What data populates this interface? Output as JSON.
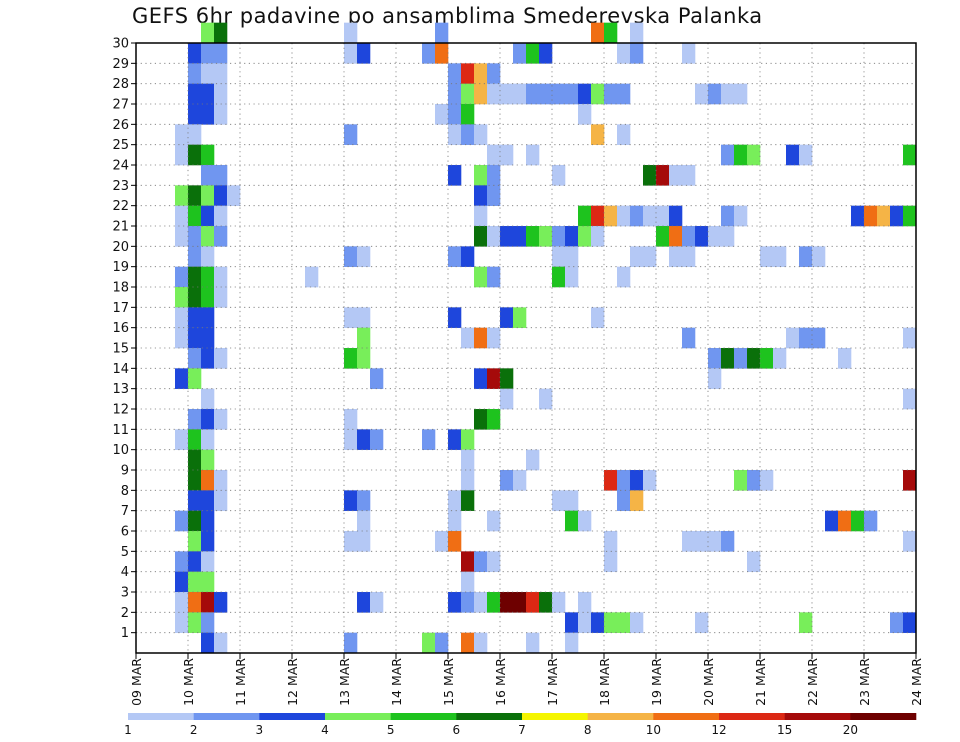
{
  "title": "GEFS 6hr padavine po ansamblima Smederevska Palanka",
  "chart_data": {
    "type": "heatmap",
    "title": "GEFS 6hr padavine po ansamblima Smederevska Palanka",
    "x_tick_labels": [
      "09 MAR",
      "10 MAR",
      "11 MAR",
      "12 MAR",
      "13 MAR",
      "14 MAR",
      "15 MAR",
      "16 MAR",
      "17 MAR",
      "18 MAR",
      "19 MAR",
      "20 MAR",
      "21 MAR",
      "22 MAR",
      "23 MAR",
      "24 MAR"
    ],
    "y_tick_labels": [
      "1",
      "2",
      "3",
      "4",
      "5",
      "6",
      "7",
      "8",
      "9",
      "10",
      "11",
      "12",
      "13",
      "14",
      "15",
      "16",
      "17",
      "18",
      "19",
      "20",
      "21",
      "22",
      "23",
      "24",
      "25",
      "26",
      "27",
      "28",
      "29",
      "30"
    ],
    "x_range_days": [
      9,
      24
    ],
    "y_range": [
      0,
      30
    ],
    "grid": "dotted",
    "time_step_hours": 6,
    "legend": {
      "placement": "bottom",
      "levels": [
        "1",
        "2",
        "3",
        "4",
        "5",
        "6",
        "7",
        "8",
        "10",
        "12",
        "15",
        "20"
      ],
      "colors": [
        "#b4c8f5",
        "#7096f0",
        "#1e46dc",
        "#78ee5a",
        "#1ec31e",
        "#0a700a",
        "#f5f500",
        "#f5b446",
        "#f06e14",
        "#dc2814",
        "#a50a0a",
        "#6e0000"
      ]
    },
    "cells_note": "each cell: [member, start_day, precipitation_mm]",
    "cells": [
      [
        30,
        10.25,
        4.5
      ],
      [
        30,
        10.5,
        6.5
      ],
      [
        30,
        13.0,
        1.5
      ],
      [
        30,
        14.75,
        2.5
      ],
      [
        30,
        17.75,
        10.5
      ],
      [
        30,
        18.0,
        5.5
      ],
      [
        30,
        18.5,
        1.5
      ],
      [
        29,
        10.0,
        3.5
      ],
      [
        29,
        10.25,
        2.5
      ],
      [
        29,
        10.5,
        2.5
      ],
      [
        29,
        13.0,
        1.5
      ],
      [
        29,
        13.25,
        3.5
      ],
      [
        29,
        14.5,
        2.5
      ],
      [
        29,
        14.75,
        10.5
      ],
      [
        29,
        16.25,
        2.5
      ],
      [
        29,
        16.5,
        5.5
      ],
      [
        29,
        16.75,
        3.5
      ],
      [
        29,
        18.25,
        1.5
      ],
      [
        29,
        18.5,
        2.5
      ],
      [
        29,
        19.5,
        1.5
      ],
      [
        28,
        10.0,
        2.5
      ],
      [
        28,
        10.25,
        1.5
      ],
      [
        28,
        10.5,
        1.5
      ],
      [
        28,
        15.0,
        2.5
      ],
      [
        28,
        15.25,
        12.5
      ],
      [
        28,
        15.5,
        8.5
      ],
      [
        28,
        15.75,
        2.5
      ],
      [
        27,
        10.0,
        3.5
      ],
      [
        27,
        10.25,
        3.5
      ],
      [
        27,
        10.5,
        1.5
      ],
      [
        27,
        15.0,
        2.5
      ],
      [
        27,
        15.25,
        4.5
      ],
      [
        27,
        15.5,
        8.5
      ],
      [
        27,
        15.75,
        1.5
      ],
      [
        27,
        16.0,
        1.5
      ],
      [
        27,
        16.25,
        1.5
      ],
      [
        27,
        16.5,
        2.5
      ],
      [
        27,
        16.75,
        2.5
      ],
      [
        27,
        17.0,
        2.5
      ],
      [
        27,
        17.25,
        2.5
      ],
      [
        27,
        17.5,
        3.5
      ],
      [
        27,
        17.75,
        4.5
      ],
      [
        27,
        18.0,
        2.5
      ],
      [
        27,
        18.25,
        2.5
      ],
      [
        27,
        19.75,
        1.5
      ],
      [
        27,
        20.0,
        2.5
      ],
      [
        27,
        20.25,
        1.5
      ],
      [
        27,
        20.5,
        1.5
      ],
      [
        26,
        10.0,
        3.5
      ],
      [
        26,
        10.25,
        3.5
      ],
      [
        26,
        10.5,
        1.5
      ],
      [
        26,
        14.75,
        1.5
      ],
      [
        26,
        15.0,
        2.5
      ],
      [
        26,
        15.25,
        5.5
      ],
      [
        26,
        17.5,
        1.5
      ],
      [
        25,
        9.75,
        1.5
      ],
      [
        25,
        10.0,
        1.5
      ],
      [
        25,
        13.0,
        2.5
      ],
      [
        25,
        15.0,
        1.5
      ],
      [
        25,
        15.25,
        2.5
      ],
      [
        25,
        15.5,
        1.5
      ],
      [
        25,
        17.75,
        8.5
      ],
      [
        25,
        18.25,
        1.5
      ],
      [
        24,
        9.75,
        1.5
      ],
      [
        24,
        10.0,
        6.5
      ],
      [
        24,
        10.25,
        5.5
      ],
      [
        24,
        15.75,
        1.5
      ],
      [
        24,
        16.0,
        1.5
      ],
      [
        24,
        16.5,
        1.5
      ],
      [
        24,
        20.25,
        2.5
      ],
      [
        24,
        20.5,
        5.5
      ],
      [
        24,
        20.75,
        4.5
      ],
      [
        24,
        21.5,
        3.5
      ],
      [
        24,
        21.75,
        1.5
      ],
      [
        24,
        23.75,
        5.5
      ],
      [
        23,
        10.25,
        2.5
      ],
      [
        23,
        10.5,
        2.5
      ],
      [
        23,
        15.0,
        3.5
      ],
      [
        23,
        15.5,
        4.5
      ],
      [
        23,
        15.75,
        2.5
      ],
      [
        23,
        17.0,
        1.5
      ],
      [
        23,
        18.75,
        6.5
      ],
      [
        23,
        19.0,
        15.5
      ],
      [
        23,
        19.25,
        1.5
      ],
      [
        23,
        19.5,
        1.5
      ],
      [
        22,
        9.75,
        4.5
      ],
      [
        22,
        10.0,
        6.5
      ],
      [
        22,
        10.25,
        4.5
      ],
      [
        22,
        10.5,
        3.5
      ],
      [
        22,
        10.75,
        1.5
      ],
      [
        22,
        15.5,
        3.5
      ],
      [
        22,
        15.75,
        2.5
      ],
      [
        21,
        9.75,
        1.5
      ],
      [
        21,
        10.0,
        5.5
      ],
      [
        21,
        10.25,
        3.5
      ],
      [
        21,
        10.5,
        1.5
      ],
      [
        21,
        15.5,
        1.5
      ],
      [
        21,
        17.5,
        5.5
      ],
      [
        21,
        17.75,
        12.5
      ],
      [
        21,
        18.0,
        8.5
      ],
      [
        21,
        18.25,
        1.5
      ],
      [
        21,
        18.5,
        2.5
      ],
      [
        21,
        18.75,
        1.5
      ],
      [
        21,
        19.0,
        1.5
      ],
      [
        21,
        19.25,
        3.5
      ],
      [
        21,
        20.25,
        2.5
      ],
      [
        21,
        20.5,
        1.5
      ],
      [
        21,
        22.75,
        3.5
      ],
      [
        21,
        23.0,
        10.5
      ],
      [
        21,
        23.25,
        8.5
      ],
      [
        21,
        23.5,
        3.5
      ],
      [
        21,
        23.75,
        5.5
      ],
      [
        20,
        9.75,
        1.5
      ],
      [
        20,
        10.0,
        2.5
      ],
      [
        20,
        10.25,
        4.5
      ],
      [
        20,
        10.5,
        2.5
      ],
      [
        20,
        15.5,
        6.5
      ],
      [
        20,
        15.75,
        1.5
      ],
      [
        20,
        16.0,
        3.5
      ],
      [
        20,
        16.25,
        3.5
      ],
      [
        20,
        16.5,
        5.5
      ],
      [
        20,
        16.75,
        4.5
      ],
      [
        20,
        17.0,
        2.5
      ],
      [
        20,
        17.25,
        3.5
      ],
      [
        20,
        17.5,
        4.5
      ],
      [
        20,
        17.75,
        1.5
      ],
      [
        20,
        19.0,
        5.5
      ],
      [
        20,
        19.25,
        10.5
      ],
      [
        20,
        19.5,
        2.5
      ],
      [
        20,
        19.75,
        3.5
      ],
      [
        20,
        20.0,
        1.5
      ],
      [
        20,
        20.25,
        1.5
      ],
      [
        19,
        10.0,
        2.5
      ],
      [
        19,
        10.25,
        1.5
      ],
      [
        19,
        13.0,
        2.5
      ],
      [
        19,
        13.25,
        1.5
      ],
      [
        19,
        15.0,
        2.5
      ],
      [
        19,
        15.25,
        3.5
      ],
      [
        19,
        17.0,
        1.5
      ],
      [
        19,
        17.25,
        1.5
      ],
      [
        19,
        18.5,
        1.5
      ],
      [
        19,
        18.75,
        1.5
      ],
      [
        19,
        19.25,
        1.5
      ],
      [
        19,
        19.5,
        1.5
      ],
      [
        19,
        21.0,
        1.5
      ],
      [
        19,
        21.25,
        1.5
      ],
      [
        19,
        21.75,
        2.5
      ],
      [
        19,
        22.0,
        1.5
      ],
      [
        18,
        9.75,
        2.5
      ],
      [
        18,
        10.0,
        6.5
      ],
      [
        18,
        10.25,
        5.5
      ],
      [
        18,
        10.5,
        1.5
      ],
      [
        18,
        12.25,
        1.5
      ],
      [
        18,
        15.5,
        4.5
      ],
      [
        18,
        15.75,
        2.5
      ],
      [
        18,
        17.0,
        5.5
      ],
      [
        18,
        17.25,
        1.5
      ],
      [
        18,
        18.25,
        1.5
      ],
      [
        17,
        9.75,
        4.5
      ],
      [
        17,
        10.0,
        6.5
      ],
      [
        17,
        10.25,
        5.5
      ],
      [
        17,
        10.5,
        1.5
      ],
      [
        16,
        9.75,
        1.5
      ],
      [
        16,
        10.0,
        3.5
      ],
      [
        16,
        10.25,
        3.5
      ],
      [
        16,
        13.0,
        1.5
      ],
      [
        16,
        13.25,
        1.5
      ],
      [
        16,
        15.0,
        3.5
      ],
      [
        16,
        16.0,
        3.5
      ],
      [
        16,
        16.25,
        4.5
      ],
      [
        16,
        17.75,
        1.5
      ],
      [
        15,
        9.75,
        1.5
      ],
      [
        15,
        10.0,
        3.5
      ],
      [
        15,
        10.25,
        3.5
      ],
      [
        15,
        13.25,
        4.5
      ],
      [
        15,
        15.25,
        1.5
      ],
      [
        15,
        15.5,
        10.5
      ],
      [
        15,
        15.75,
        1.5
      ],
      [
        15,
        19.5,
        2.5
      ],
      [
        15,
        21.5,
        1.5
      ],
      [
        15,
        21.75,
        2.5
      ],
      [
        15,
        22.0,
        2.5
      ],
      [
        15,
        23.75,
        1.5
      ],
      [
        14,
        10.0,
        2.5
      ],
      [
        14,
        10.25,
        3.5
      ],
      [
        14,
        10.5,
        1.5
      ],
      [
        14,
        13.0,
        5.5
      ],
      [
        14,
        13.25,
        4.5
      ],
      [
        14,
        20.0,
        2.5
      ],
      [
        14,
        20.25,
        6.5
      ],
      [
        14,
        20.5,
        2.5
      ],
      [
        14,
        20.75,
        6.5
      ],
      [
        14,
        21.0,
        5.5
      ],
      [
        14,
        21.25,
        1.5
      ],
      [
        14,
        22.5,
        1.5
      ],
      [
        13,
        9.75,
        3.5
      ],
      [
        13,
        10.0,
        4.5
      ],
      [
        13,
        13.5,
        2.5
      ],
      [
        13,
        15.5,
        3.5
      ],
      [
        13,
        15.75,
        15.5
      ],
      [
        13,
        16.0,
        6.5
      ],
      [
        13,
        20.0,
        1.5
      ],
      [
        12,
        10.25,
        1.5
      ],
      [
        12,
        16.0,
        1.5
      ],
      [
        12,
        16.75,
        1.5
      ],
      [
        12,
        23.75,
        1.5
      ],
      [
        11,
        10.0,
        2.5
      ],
      [
        11,
        10.25,
        3.5
      ],
      [
        11,
        10.5,
        1.5
      ],
      [
        11,
        13.0,
        1.5
      ],
      [
        11,
        15.5,
        6.5
      ],
      [
        11,
        15.75,
        5.5
      ],
      [
        10,
        9.75,
        1.5
      ],
      [
        10,
        10.0,
        5.5
      ],
      [
        10,
        10.25,
        1.5
      ],
      [
        10,
        13.0,
        1.5
      ],
      [
        10,
        13.25,
        3.5
      ],
      [
        10,
        13.5,
        2.5
      ],
      [
        10,
        14.5,
        2.5
      ],
      [
        10,
        15.0,
        3.5
      ],
      [
        10,
        15.25,
        4.5
      ],
      [
        9,
        10.0,
        6.5
      ],
      [
        9,
        10.25,
        4.5
      ],
      [
        9,
        15.25,
        1.5
      ],
      [
        9,
        16.5,
        1.5
      ],
      [
        8,
        10.0,
        6.5
      ],
      [
        8,
        10.25,
        10.5
      ],
      [
        8,
        10.5,
        1.5
      ],
      [
        8,
        15.25,
        1.5
      ],
      [
        8,
        16.0,
        2.5
      ],
      [
        8,
        16.25,
        1.5
      ],
      [
        8,
        18.0,
        12.5
      ],
      [
        8,
        18.25,
        2.5
      ],
      [
        8,
        18.5,
        3.5
      ],
      [
        8,
        18.75,
        1.5
      ],
      [
        8,
        20.5,
        4.5
      ],
      [
        8,
        20.75,
        2.5
      ],
      [
        8,
        21.0,
        1.5
      ],
      [
        8,
        23.75,
        15.5
      ],
      [
        7,
        10.0,
        3.5
      ],
      [
        7,
        10.25,
        3.5
      ],
      [
        7,
        10.5,
        1.5
      ],
      [
        7,
        13.0,
        3.5
      ],
      [
        7,
        13.25,
        2.5
      ],
      [
        7,
        15.0,
        1.5
      ],
      [
        7,
        15.25,
        6.5
      ],
      [
        7,
        17.0,
        1.5
      ],
      [
        7,
        17.25,
        1.5
      ],
      [
        7,
        18.25,
        2.5
      ],
      [
        7,
        18.5,
        8.5
      ],
      [
        6,
        9.75,
        2.5
      ],
      [
        6,
        10.0,
        6.5
      ],
      [
        6,
        10.25,
        3.5
      ],
      [
        6,
        13.25,
        1.5
      ],
      [
        6,
        15.0,
        1.5
      ],
      [
        6,
        15.75,
        1.5
      ],
      [
        6,
        17.25,
        5.5
      ],
      [
        6,
        17.5,
        1.5
      ],
      [
        6,
        22.25,
        3.5
      ],
      [
        6,
        22.5,
        10.5
      ],
      [
        6,
        22.75,
        5.5
      ],
      [
        6,
        23.0,
        2.5
      ],
      [
        5,
        10.0,
        4.5
      ],
      [
        5,
        10.25,
        3.5
      ],
      [
        5,
        13.0,
        1.5
      ],
      [
        5,
        13.25,
        1.5
      ],
      [
        5,
        14.75,
        1.5
      ],
      [
        5,
        15.0,
        10.5
      ],
      [
        5,
        18.0,
        1.5
      ],
      [
        5,
        19.5,
        1.5
      ],
      [
        5,
        19.75,
        1.5
      ],
      [
        5,
        20.0,
        1.5
      ],
      [
        5,
        20.25,
        2.5
      ],
      [
        5,
        23.75,
        1.5
      ],
      [
        4,
        9.75,
        2.5
      ],
      [
        4,
        10.0,
        3.5
      ],
      [
        4,
        10.25,
        1.5
      ],
      [
        4,
        15.25,
        15.5
      ],
      [
        4,
        15.5,
        2.5
      ],
      [
        4,
        15.75,
        1.5
      ],
      [
        4,
        18.0,
        1.5
      ],
      [
        4,
        20.75,
        1.5
      ],
      [
        3,
        9.75,
        3.5
      ],
      [
        3,
        10.0,
        4.5
      ],
      [
        3,
        10.25,
        4.5
      ],
      [
        3,
        15.25,
        1.5
      ],
      [
        2,
        9.75,
        1.5
      ],
      [
        2,
        10.0,
        10.5
      ],
      [
        2,
        10.25,
        15.5
      ],
      [
        2,
        10.5,
        3.5
      ],
      [
        2,
        13.25,
        3.5
      ],
      [
        2,
        13.5,
        1.5
      ],
      [
        2,
        15.0,
        3.5
      ],
      [
        2,
        15.25,
        2.5
      ],
      [
        2,
        15.5,
        1.5
      ],
      [
        2,
        15.75,
        5.5
      ],
      [
        2,
        16.0,
        20.5
      ],
      [
        2,
        16.25,
        20.5
      ],
      [
        2,
        16.5,
        12.5
      ],
      [
        2,
        16.75,
        6.5
      ],
      [
        2,
        17.0,
        1.5
      ],
      [
        2,
        17.5,
        1.5
      ],
      [
        1,
        9.75,
        1.5
      ],
      [
        1,
        10.0,
        4.5
      ],
      [
        1,
        10.25,
        2.5
      ],
      [
        1,
        17.25,
        3.5
      ],
      [
        1,
        17.5,
        1.5
      ],
      [
        1,
        17.75,
        3.5
      ],
      [
        1,
        18.0,
        4.5
      ],
      [
        1,
        18.25,
        4.5
      ],
      [
        1,
        18.5,
        1.5
      ],
      [
        1,
        19.75,
        1.5
      ],
      [
        1,
        21.75,
        4.5
      ],
      [
        1,
        23.5,
        2.5
      ],
      [
        1,
        23.75,
        3.5
      ],
      [
        0,
        10.25,
        3.5
      ],
      [
        0,
        10.5,
        1.5
      ],
      [
        0,
        13.0,
        2.5
      ],
      [
        0,
        14.5,
        4.5
      ],
      [
        0,
        14.75,
        2.5
      ],
      [
        0,
        15.25,
        10.5
      ],
      [
        0,
        15.5,
        1.5
      ],
      [
        0,
        16.5,
        1.5
      ],
      [
        0,
        17.25,
        1.5
      ]
    ]
  }
}
